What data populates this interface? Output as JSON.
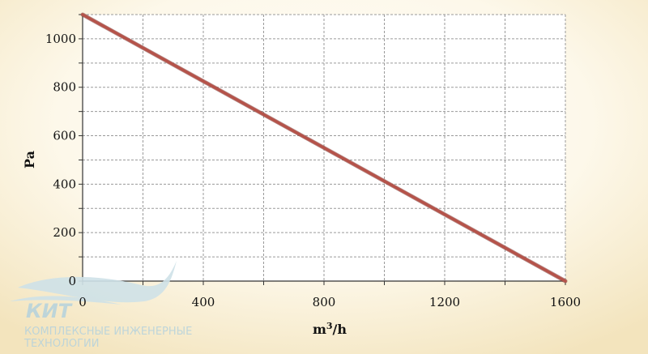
{
  "chart_data": {
    "type": "line",
    "title": "",
    "xlabel": "m",
    "xlabel_sup": "3",
    "xlabel_suffix": "/h",
    "ylabel": "Pa",
    "xlim": [
      0,
      1600
    ],
    "ylim": [
      0,
      1100
    ],
    "x_ticks": [
      0,
      400,
      800,
      1200,
      1600
    ],
    "y_ticks": [
      0,
      200,
      400,
      600,
      800,
      1000
    ],
    "x_tick_labels": [
      "0",
      "400",
      "800",
      "1200",
      "1600"
    ],
    "y_tick_labels": [
      "0",
      "200",
      "400",
      "600",
      "800",
      "1000"
    ],
    "grid": true,
    "series": [
      {
        "x": [
          0,
          1600
        ],
        "y": [
          1100,
          0
        ],
        "color": "#b5534a"
      }
    ]
  },
  "watermark": {
    "brand": "КИТ",
    "line1": "КОМПЛЕКСНЫЕ ИНЖЕНЕРНЫЕ",
    "line2": "ТЕХНОЛОГИИ"
  },
  "colors": {
    "plot_bg": "#ffffff",
    "grid": "#9a9a9a",
    "axis": "#333333",
    "line": "#b5534a"
  }
}
